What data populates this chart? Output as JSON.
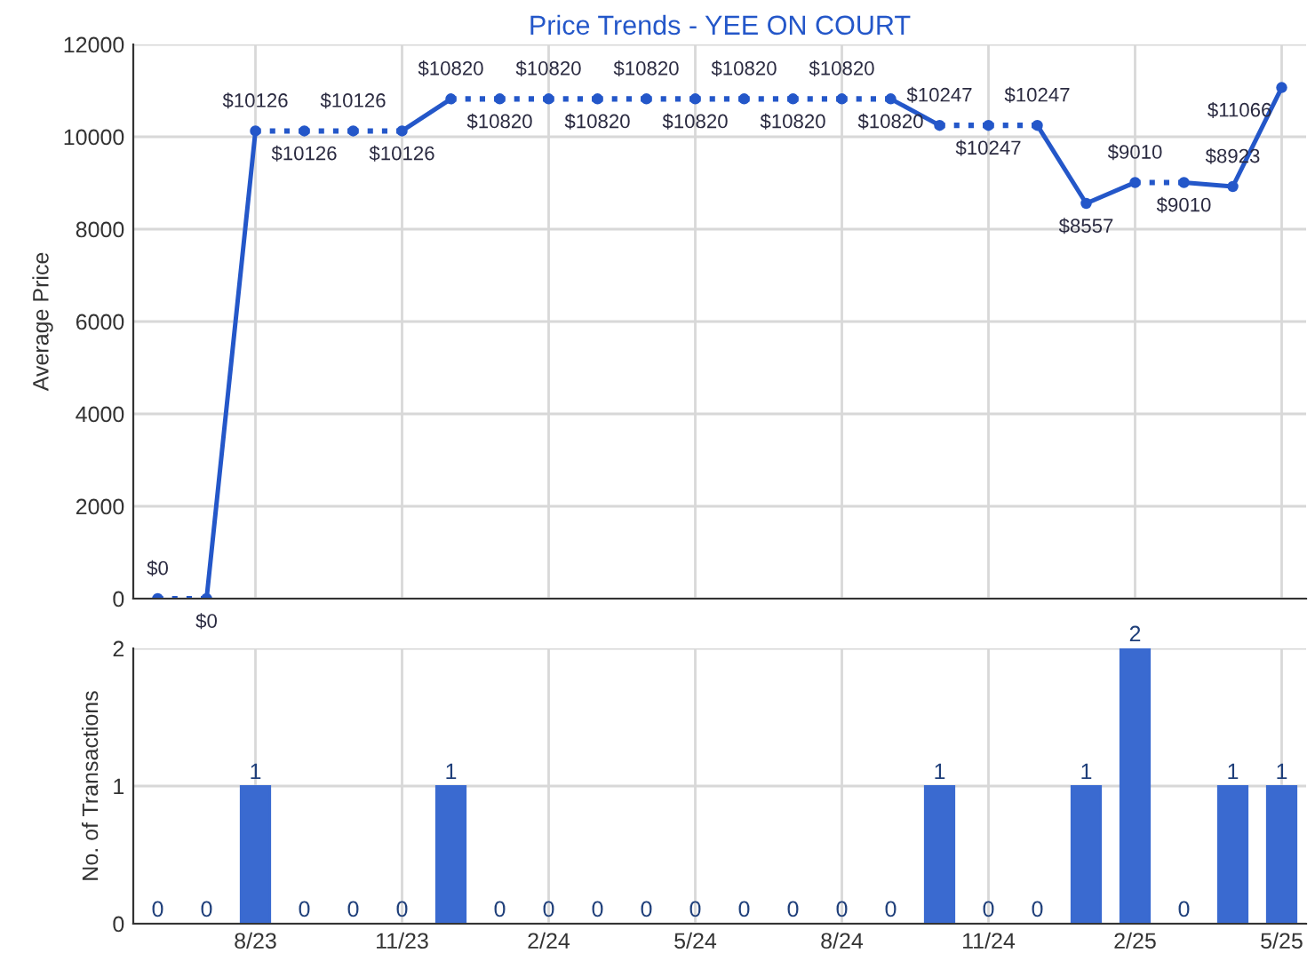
{
  "chart_data": [
    {
      "type": "line",
      "title": "Price Trends - YEE ON COURT",
      "ylabel": "Average Price",
      "categories": [
        null,
        null,
        null,
        null,
        null,
        null,
        null,
        null,
        null,
        null,
        null,
        null,
        null,
        null,
        null,
        null,
        null,
        null,
        null,
        null,
        null,
        null,
        null,
        null
      ],
      "series": [
        {
          "color": "#2457c9",
          "values": [
            0,
            0,
            10126,
            10126,
            10126,
            10126,
            10820,
            10820,
            10820,
            10820,
            10820,
            10820,
            10820,
            10820,
            10820,
            10820,
            10247,
            10247,
            10247,
            8557,
            9010,
            9010,
            8923,
            11066
          ],
          "value_labels": [
            "$0",
            "$0",
            "$10126",
            "$10126",
            "$10126",
            "$10126",
            "$10820",
            "$10820",
            "$10820",
            "$10820",
            "$10820",
            "$10820",
            "$10820",
            "$10820",
            "$10820",
            "$10820",
            "$10247",
            "$10247",
            "$10247",
            "$8557",
            "$9010",
            "$9010",
            "$8923",
            "$11066"
          ]
        }
      ],
      "ylim": [
        0,
        12000
      ],
      "yticks": [
        0,
        2000,
        4000,
        6000,
        8000,
        10000,
        12000
      ],
      "grid": true,
      "marker": "circle",
      "line_style": "solid",
      "tick_labels": "y",
      "legend": false
    },
    {
      "type": "bar",
      "ylabel": "No. of Transactions",
      "categories": [
        null,
        null,
        "8/23",
        null,
        null,
        "11/23",
        null,
        null,
        "2/24",
        null,
        null,
        "5/24",
        null,
        null,
        "8/24",
        null,
        null,
        "11/24",
        null,
        null,
        "2/25",
        null,
        null,
        "5/25"
      ],
      "values": [
        0,
        0,
        1,
        0,
        0,
        0,
        1,
        0,
        0,
        0,
        0,
        0,
        0,
        0,
        0,
        0,
        1,
        0,
        0,
        1,
        2,
        0,
        1,
        1
      ],
      "color": "#3a6ad0",
      "ylim": [
        0,
        2
      ],
      "yticks": [
        0,
        1,
        2
      ],
      "grid": true,
      "data_labels": true,
      "legend": false
    }
  ]
}
